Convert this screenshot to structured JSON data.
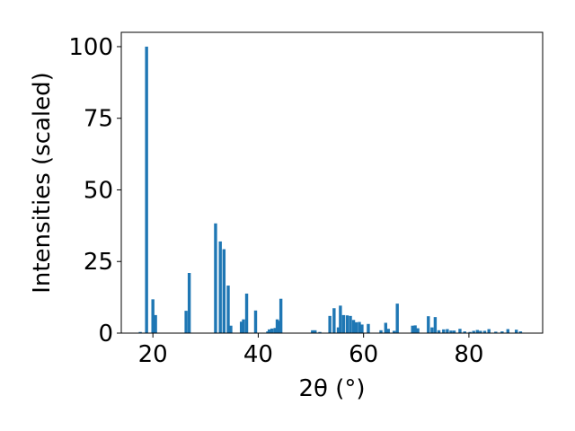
{
  "chart_data": {
    "type": "bar",
    "xlabel": "2θ (°)",
    "ylabel": "Intensities (scaled)",
    "xlim": [
      14,
      94
    ],
    "ylim": [
      0,
      105
    ],
    "xticks": [
      20,
      40,
      60,
      80
    ],
    "yticks": [
      0,
      25,
      50,
      75,
      100
    ],
    "grid": false,
    "bar_color": "#1f77b4",
    "x": [
      17.6,
      18.8,
      20.0,
      20.5,
      26.3,
      26.9,
      31.9,
      32.8,
      33.5,
      34.3,
      34.8,
      36.8,
      37.2,
      37.8,
      39.5,
      41.8,
      42.1,
      42.6,
      43.2,
      43.6,
      44.0,
      44.3,
      50.3,
      50.8,
      51.7,
      53.6,
      54.4,
      55.2,
      55.6,
      56.2,
      56.9,
      57.5,
      58.1,
      58.6,
      59.2,
      59.7,
      60.9,
      63.3,
      64.2,
      64.7,
      65.8,
      66.4,
      69.3,
      69.8,
      70.3,
      72.3,
      73.0,
      73.6,
      74.3,
      75.2,
      75.9,
      76.6,
      77.2,
      78.3,
      79.2,
      80.2,
      80.9,
      81.6,
      82.2,
      83.0,
      83.8,
      85.1,
      86.3,
      87.4,
      89.0,
      89.8
    ],
    "values": [
      0.4,
      100,
      11.8,
      6.3,
      7.8,
      21.0,
      38.3,
      32.0,
      29.3,
      16.6,
      2.6,
      4.0,
      4.8,
      13.8,
      7.9,
      0.6,
      1.3,
      1.6,
      1.8,
      4.8,
      4.3,
      12.0,
      1.0,
      1.0,
      0.4,
      6.0,
      8.7,
      2.0,
      9.6,
      6.3,
      6.2,
      6.0,
      4.6,
      3.8,
      3.9,
      3.0,
      3.2,
      1.0,
      3.6,
      1.5,
      0.8,
      10.3,
      2.6,
      2.7,
      1.7,
      5.9,
      2.0,
      5.6,
      1.0,
      1.3,
      1.4,
      0.9,
      0.9,
      1.5,
      0.6,
      0.4,
      0.8,
      1.1,
      0.8,
      0.8,
      1.4,
      0.5,
      0.6,
      1.4,
      1.2,
      0.6
    ]
  }
}
